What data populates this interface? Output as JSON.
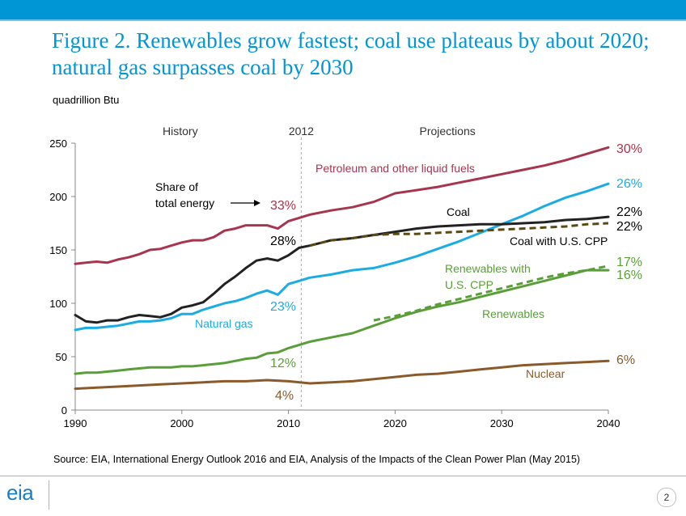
{
  "header": {
    "title": "Figure 2. Renewables grow fastest; coal use plateaus by about 2020; natural gas surpasses coal by 2030",
    "units": "quadrillion Btu"
  },
  "source": "Source:  EIA, International Energy Outlook 2016 and EIA, Analysis of the Impacts of the Clean Power Plan (May 2015)",
  "footer": {
    "logo_text": "eia",
    "page_number": "2"
  },
  "chart_data": {
    "type": "line",
    "xlim": [
      1990,
      2040
    ],
    "ylim": [
      0,
      250
    ],
    "xticks": [
      1990,
      2000,
      2010,
      2020,
      2030,
      2040
    ],
    "yticks": [
      0,
      50,
      100,
      150,
      200,
      250
    ],
    "divider_year": 2011.2,
    "divider_label": "2012",
    "region_labels": {
      "history": "History",
      "projections": "Projections"
    },
    "annotation": {
      "line1": "Share of",
      "line2": "total energy"
    },
    "series": [
      {
        "name": "Petroleum and other liquid fuels",
        "color": "#a6354f",
        "style": "solid",
        "x": [
          1990,
          1991,
          1992,
          1993,
          1994,
          1995,
          1996,
          1997,
          1998,
          1999,
          2000,
          2001,
          2002,
          2003,
          2004,
          2005,
          2006,
          2007,
          2008,
          2009,
          2010,
          2011,
          2012,
          2014,
          2016,
          2018,
          2020,
          2022,
          2024,
          2026,
          2028,
          2030,
          2032,
          2034,
          2036,
          2038,
          2040
        ],
        "values": [
          137,
          138,
          139,
          138,
          141,
          143,
          146,
          150,
          151,
          154,
          157,
          159,
          159,
          162,
          168,
          170,
          173,
          173,
          173,
          170,
          177,
          180,
          183,
          187,
          190,
          195,
          203,
          206,
          209,
          213,
          217,
          221,
          225,
          229,
          234,
          240,
          246
        ],
        "share_left": "33%",
        "share_right": "30%"
      },
      {
        "name": "Natural gas",
        "color": "#1aace3",
        "style": "solid",
        "x": [
          1990,
          1991,
          1992,
          1993,
          1994,
          1995,
          1996,
          1997,
          1998,
          1999,
          2000,
          2001,
          2002,
          2003,
          2004,
          2005,
          2006,
          2007,
          2008,
          2009,
          2010,
          2011,
          2012,
          2014,
          2016,
          2018,
          2020,
          2022,
          2024,
          2026,
          2028,
          2030,
          2032,
          2034,
          2036,
          2038,
          2040
        ],
        "values": [
          75,
          77,
          77,
          78,
          79,
          81,
          83,
          83,
          84,
          86,
          90,
          90,
          94,
          97,
          100,
          102,
          105,
          109,
          112,
          108,
          118,
          121,
          124,
          127,
          131,
          133,
          138,
          144,
          151,
          158,
          166,
          174,
          182,
          191,
          199,
          205,
          212
        ],
        "share_left": "23%",
        "share_right": "26%"
      },
      {
        "name": "Coal",
        "color": "#222222",
        "style": "solid",
        "x": [
          1990,
          1991,
          1992,
          1993,
          1994,
          1995,
          1996,
          1997,
          1998,
          1999,
          2000,
          2001,
          2002,
          2003,
          2004,
          2005,
          2006,
          2007,
          2008,
          2009,
          2010,
          2011,
          2012,
          2014,
          2016,
          2018,
          2020,
          2022,
          2024,
          2026,
          2028,
          2030,
          2032,
          2034,
          2036,
          2038,
          2040
        ],
        "values": [
          89,
          83,
          82,
          84,
          84,
          87,
          89,
          88,
          87,
          90,
          96,
          98,
          101,
          109,
          118,
          125,
          133,
          140,
          142,
          140,
          145,
          152,
          154,
          159,
          161,
          164,
          167,
          170,
          172,
          173,
          174,
          174,
          175,
          176,
          178,
          179,
          181
        ],
        "share_left": "28%",
        "share_right": "22%"
      },
      {
        "name": "Coal with U.S. CPP",
        "color": "#5a4a10",
        "style": "dashed",
        "x": [
          2012,
          2014,
          2016,
          2018,
          2020,
          2022,
          2024,
          2026,
          2028,
          2030,
          2032,
          2034,
          2036,
          2038,
          2040
        ],
        "values": [
          154,
          159,
          161,
          164,
          165,
          165,
          166,
          167,
          168,
          169,
          170,
          171,
          172,
          174,
          175
        ],
        "share_right": "22%"
      },
      {
        "name": "Renewables",
        "color": "#5a9e3a",
        "style": "solid",
        "x": [
          1990,
          1991,
          1992,
          1993,
          1994,
          1995,
          1996,
          1997,
          1998,
          1999,
          2000,
          2001,
          2002,
          2003,
          2004,
          2005,
          2006,
          2007,
          2008,
          2009,
          2010,
          2011,
          2012,
          2014,
          2016,
          2018,
          2020,
          2022,
          2024,
          2026,
          2028,
          2030,
          2032,
          2034,
          2036,
          2038,
          2040
        ],
        "values": [
          34,
          35,
          35,
          36,
          37,
          38,
          39,
          40,
          40,
          40,
          41,
          41,
          42,
          43,
          44,
          46,
          48,
          49,
          53,
          54,
          58,
          61,
          64,
          68,
          72,
          79,
          86,
          92,
          97,
          101,
          106,
          111,
          116,
          121,
          126,
          131,
          131
        ],
        "share_left": "12%",
        "share_right": "16%"
      },
      {
        "name": "Renewables with U.S. CPP",
        "label_line1": "Renewables with",
        "label_line2": "U.S. CPP",
        "color": "#5a9e3a",
        "style": "dashed",
        "x": [
          2018,
          2020,
          2022,
          2024,
          2026,
          2028,
          2030,
          2032,
          2034,
          2036,
          2038,
          2040
        ],
        "values": [
          84,
          88,
          93,
          99,
          104,
          109,
          114,
          119,
          124,
          128,
          131,
          135
        ],
        "share_right": "17%"
      },
      {
        "name": "Nuclear",
        "color": "#8b5a2b",
        "style": "solid",
        "x": [
          1990,
          1992,
          1994,
          1996,
          1998,
          2000,
          2002,
          2004,
          2006,
          2008,
          2010,
          2012,
          2014,
          2016,
          2018,
          2020,
          2022,
          2024,
          2026,
          2028,
          2030,
          2032,
          2034,
          2036,
          2038,
          2040
        ],
        "values": [
          20,
          21,
          22,
          23,
          24,
          25,
          26,
          27,
          27,
          28,
          27,
          25,
          26,
          27,
          29,
          31,
          33,
          34,
          36,
          38,
          40,
          42,
          43,
          44,
          45,
          46
        ],
        "share_left": "4%",
        "share_right": "6%"
      }
    ]
  }
}
